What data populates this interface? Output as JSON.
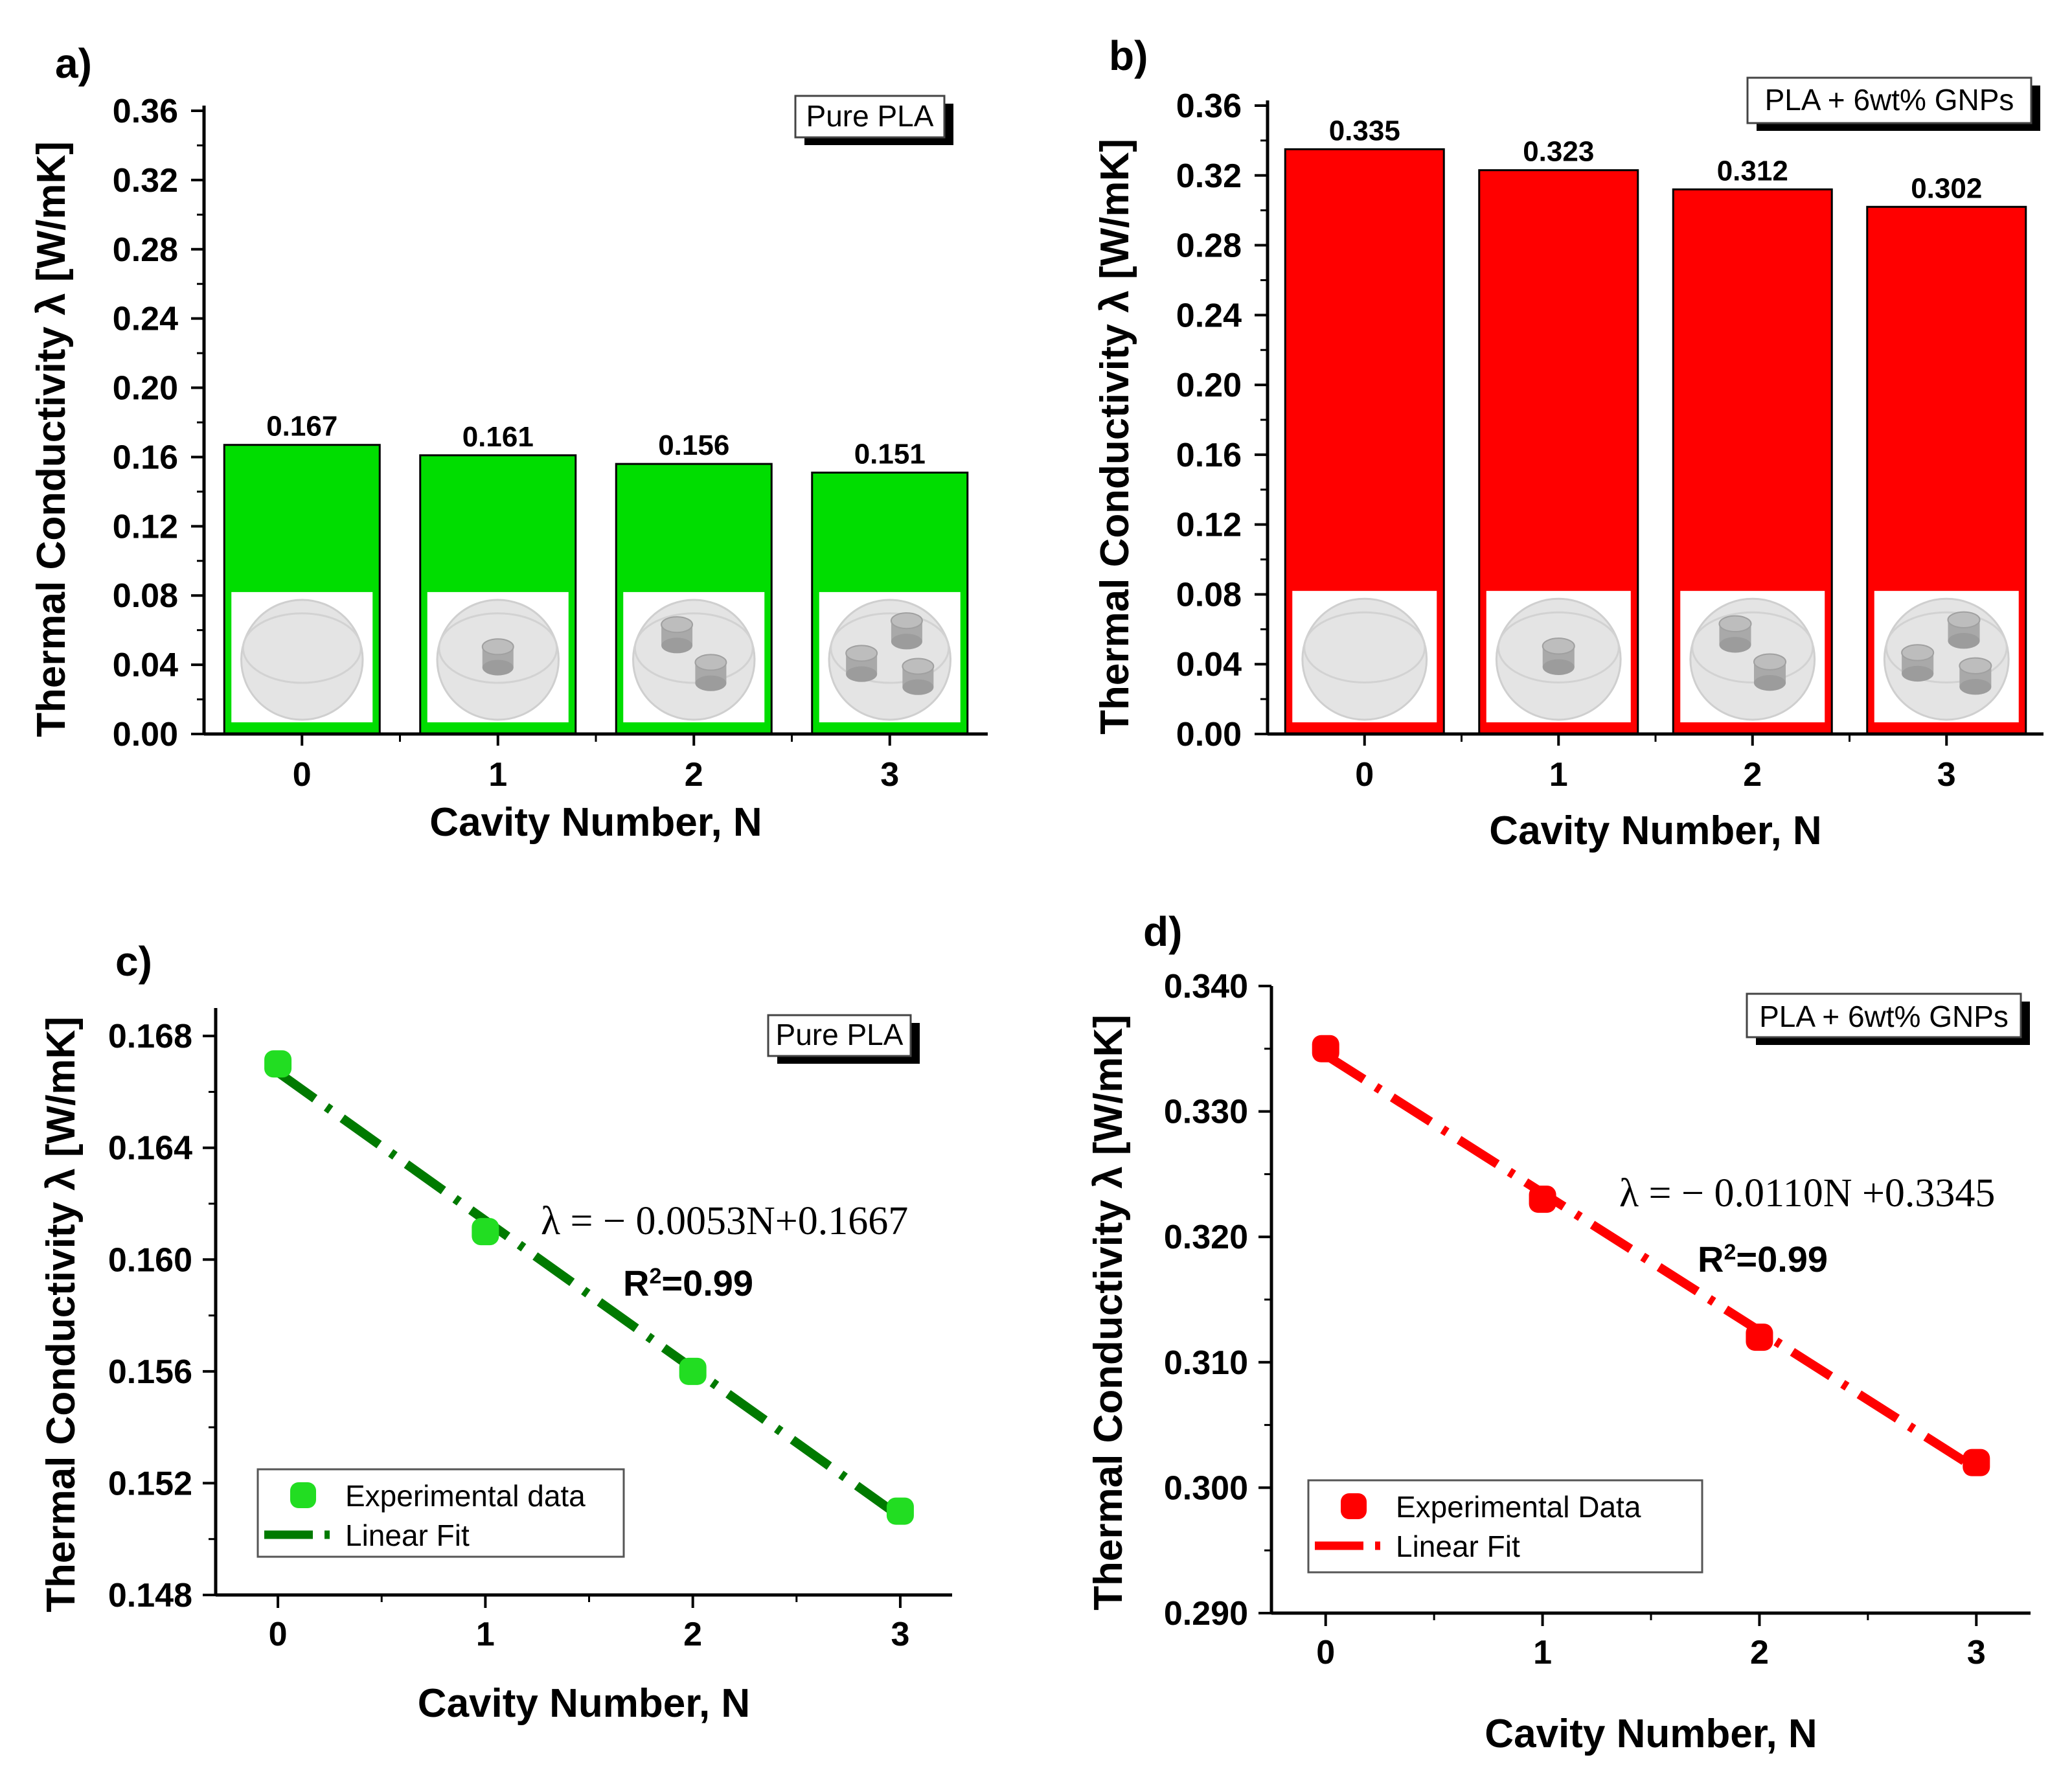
{
  "chart_data": [
    {
      "panel": "a)",
      "type": "bar",
      "inset_label": "Pure PLA",
      "xlabel": "Cavity Number, N",
      "ylabel": "Thermal Conductivity λ [W/mK]",
      "categories": [
        "0",
        "1",
        "2",
        "3"
      ],
      "values": [
        0.167,
        0.161,
        0.156,
        0.151
      ],
      "value_labels": [
        "0.167",
        "0.161",
        "0.156",
        "0.151"
      ],
      "yticks": [
        "0.00",
        "0.04",
        "0.08",
        "0.12",
        "0.16",
        "0.20",
        "0.24",
        "0.28",
        "0.32",
        "0.36"
      ],
      "ylim": [
        0,
        0.36
      ],
      "cavities_shown": [
        0,
        1,
        2,
        3
      ],
      "bar_color": "#00dd00"
    },
    {
      "panel": "b)",
      "type": "bar",
      "inset_label": "PLA + 6wt% GNPs",
      "xlabel": "Cavity Number, N",
      "ylabel": "Thermal Conductivity λ [W/mK]",
      "categories": [
        "0",
        "1",
        "2",
        "3"
      ],
      "values": [
        0.335,
        0.323,
        0.312,
        0.302
      ],
      "value_labels": [
        "0.335",
        "0.323",
        "0.312",
        "0.302"
      ],
      "yticks": [
        "0.00",
        "0.04",
        "0.08",
        "0.12",
        "0.16",
        "0.20",
        "0.24",
        "0.28",
        "0.32",
        "0.36"
      ],
      "ylim": [
        0,
        0.36
      ],
      "cavities_shown": [
        0,
        1,
        2,
        3
      ],
      "bar_color": "#ff0000"
    },
    {
      "panel": "c)",
      "type": "scatter",
      "inset_label": "Pure PLA",
      "xlabel": "Cavity Number, N",
      "ylabel": "Thermal Conductivity λ [W/mK]",
      "x": [
        0,
        1,
        2,
        3
      ],
      "y": [
        0.167,
        0.161,
        0.156,
        0.151
      ],
      "fit": {
        "slope": -0.0053,
        "intercept": 0.1667
      },
      "equation": "λ = − 0.0053N+0.1667",
      "r2_prefix": "R",
      "r2_sup": "2",
      "r2_value": "=0.99",
      "xticks": [
        "0",
        "1",
        "2",
        "3"
      ],
      "yticks": [
        "0.148",
        "0.152",
        "0.156",
        "0.160",
        "0.164",
        "0.168"
      ],
      "xlim": [
        -0.3,
        3.25
      ],
      "ylim": [
        0.148,
        0.169
      ],
      "legend": [
        "Experimental data",
        "Linear Fit"
      ],
      "point_color": "#22dd22",
      "line_color": "#007a00"
    },
    {
      "panel": "d)",
      "type": "scatter",
      "inset_label": "PLA + 6wt% GNPs",
      "xlabel": "Cavity Number, N",
      "ylabel": "Thermal Conductivity λ [W/mK]",
      "x": [
        0,
        1,
        2,
        3
      ],
      "y": [
        0.335,
        0.323,
        0.312,
        0.302
      ],
      "fit": {
        "slope": -0.011,
        "intercept": 0.3345
      },
      "equation": "λ = − 0.0110N +0.3345",
      "r2_prefix": "R",
      "r2_sup": "2",
      "r2_value": "=0.99",
      "xticks": [
        "0",
        "1",
        "2",
        "3"
      ],
      "yticks": [
        "0.290",
        "0.300",
        "0.310",
        "0.320",
        "0.330",
        "0.340"
      ],
      "xlim": [
        -0.25,
        3.25
      ],
      "ylim": [
        0.29,
        0.34
      ],
      "legend": [
        "Experimental Data",
        "Linear Fit"
      ],
      "point_color": "#ff0000",
      "line_color": "#ff0000"
    }
  ]
}
